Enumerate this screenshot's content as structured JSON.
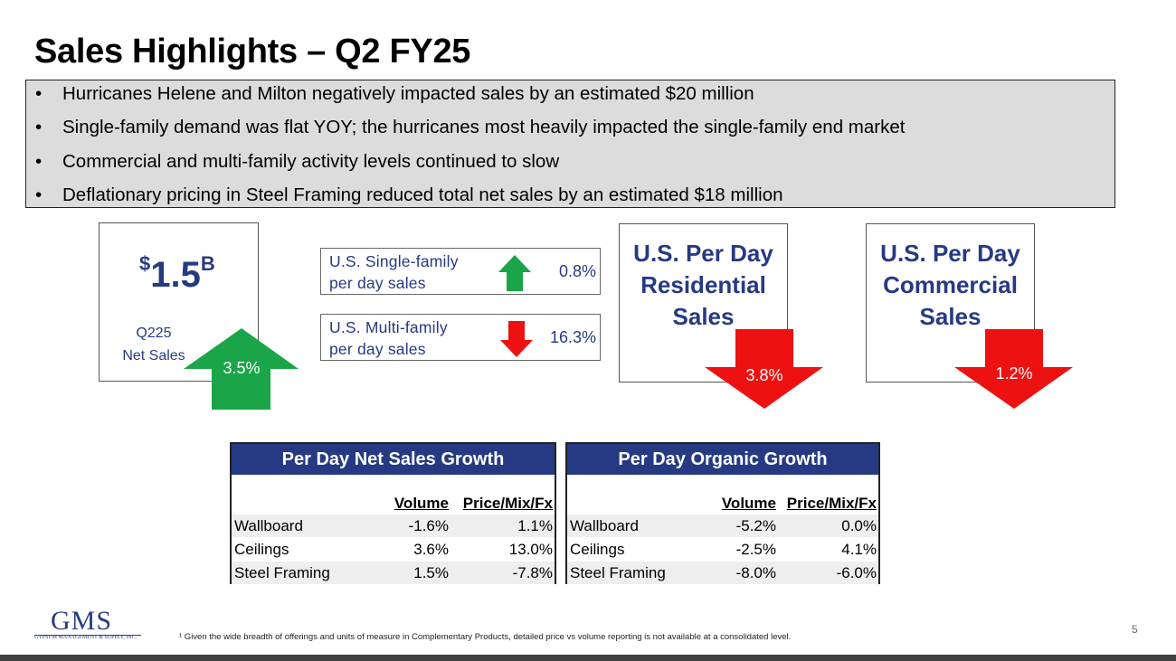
{
  "title": "Sales Highlights – Q2 FY25",
  "bullets": [
    "Hurricanes Helene and Milton negatively impacted sales by an estimated $20 million",
    "Single-family demand was flat YOY; the hurricanes most heavily impacted the single-family end market",
    "Commercial and multi-family activity levels continued to slow",
    "Deflationary pricing in Steel Framing reduced total net sales by an estimated $18 million"
  ],
  "bullet_symbol": "•",
  "net_sales": {
    "currency": "$",
    "amount": "1.5",
    "unit": "B",
    "label_line1": "Q225",
    "label_line2": "Net Sales",
    "change": "3.5%",
    "direction": "up"
  },
  "metrics": [
    {
      "label_line1": "U.S. Single-family",
      "label_line2": "per day sales",
      "value": "0.8%",
      "direction": "up"
    },
    {
      "label_line1": "U.S. Multi-family",
      "label_line2": "per day sales",
      "value": "16.3%",
      "direction": "down"
    }
  ],
  "cards": [
    {
      "line1": "U.S. Per Day",
      "line2": "Residential",
      "line3": "Sales",
      "change": "3.8%",
      "direction": "down"
    },
    {
      "line1": "U.S. Per Day",
      "line2": "Commercial",
      "line3": "Sales",
      "change": "1.2%",
      "direction": "down"
    }
  ],
  "tables": [
    {
      "title": "Per Day Net Sales Growth",
      "columns": [
        "Volume",
        "Price/Mix/Fx"
      ],
      "rows": [
        {
          "label": "Wallboard",
          "volume": "-1.6%",
          "price": "1.1%"
        },
        {
          "label": "Ceilings",
          "volume": "3.6%",
          "price": "13.0%"
        },
        {
          "label": "Steel Framing",
          "volume": "1.5%",
          "price": "-7.8%"
        }
      ]
    },
    {
      "title": "Per Day Organic Growth",
      "columns": [
        "Volume",
        "Price/Mix/Fx"
      ],
      "rows": [
        {
          "label": "Wallboard",
          "volume": "-5.2%",
          "price": "0.0%"
        },
        {
          "label": "Ceilings",
          "volume": "-2.5%",
          "price": "4.1%"
        },
        {
          "label": "Steel Framing",
          "volume": "-8.0%",
          "price": "-6.0%"
        }
      ]
    }
  ],
  "logo": {
    "text": "GMS",
    "subtext": "GYPSUM MANAGEMENT & SUPPLY, INC."
  },
  "footnote": "¹ Given the wide breadth of offerings and units of measure in Complementary Products, detailed price vs volume reporting is not available at a consolidated level.",
  "page_number": "5",
  "colors": {
    "navy": "#263a83",
    "green": "#1aa548",
    "red": "#ee1111",
    "bullet_bg": "#dcdcdc"
  }
}
